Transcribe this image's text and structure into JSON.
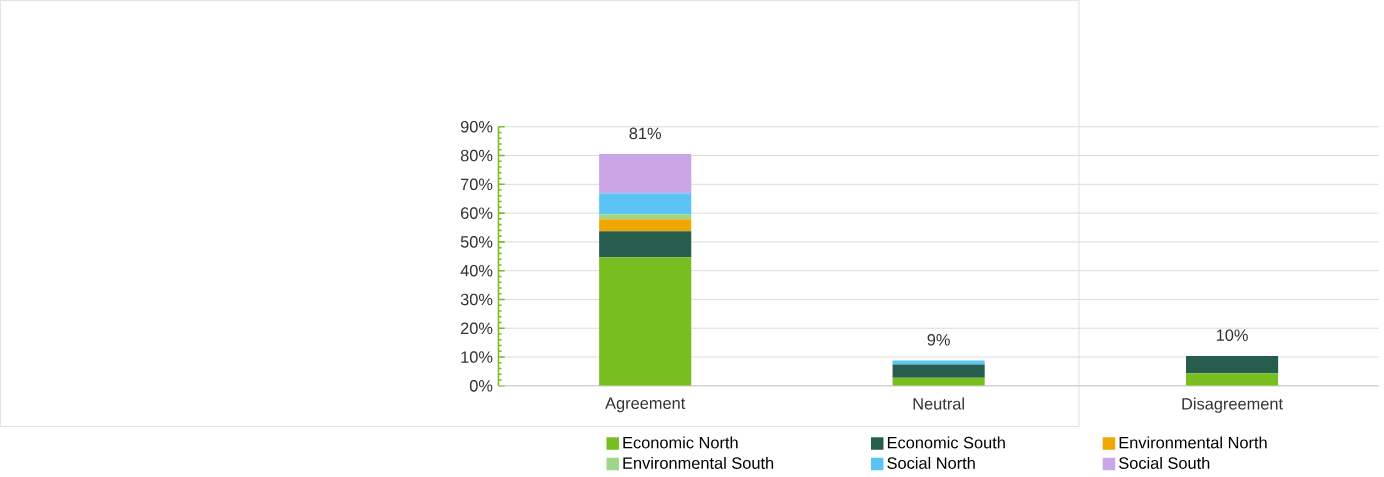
{
  "chart_data": {
    "type": "bar",
    "stacked": true,
    "categories": [
      "Agreement",
      "Neutral",
      "Disagreement"
    ],
    "series": [
      {
        "name": "Economic North",
        "color": "#78be20",
        "values": [
          44.7,
          2.8,
          4.4
        ]
      },
      {
        "name": "Economic South",
        "color": "#275d4e",
        "values": [
          9.0,
          4.6,
          6.0
        ]
      },
      {
        "name": "Environmental North",
        "color": "#f0a800",
        "values": [
          4.2,
          0,
          0
        ]
      },
      {
        "name": "Environmental South",
        "color": "#9fd68a",
        "values": [
          1.7,
          0,
          0
        ]
      },
      {
        "name": "Social North",
        "color": "#5bc4f5",
        "values": [
          7.3,
          1.4,
          0
        ]
      },
      {
        "name": "Social South",
        "color": "#caa6e6",
        "values": [
          13.6,
          0,
          0
        ]
      }
    ],
    "totals": [
      "81%",
      "9%",
      "10%"
    ],
    "ylim": [
      0,
      90
    ],
    "yticks": [
      {
        "value": 0,
        "label": "0%"
      },
      {
        "value": 10,
        "label": "10%"
      },
      {
        "value": 20,
        "label": "20%"
      },
      {
        "value": 30,
        "label": "30%"
      },
      {
        "value": 40,
        "label": "40%"
      },
      {
        "value": 50,
        "label": "50%"
      },
      {
        "value": 60,
        "label": "60%"
      },
      {
        "value": 70,
        "label": "70%"
      },
      {
        "value": 80,
        "label": "80%"
      },
      {
        "value": 90,
        "label": "90%"
      }
    ],
    "grid": "y",
    "legend": "bottom"
  }
}
